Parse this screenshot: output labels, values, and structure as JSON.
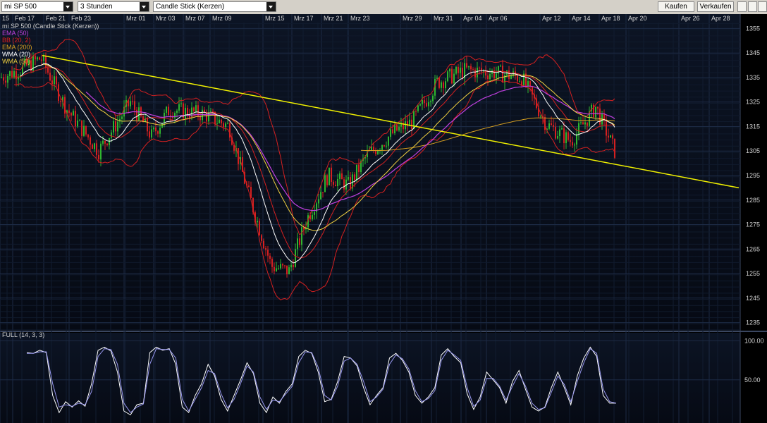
{
  "toolbar": {
    "instrument": "mi SP 500",
    "interval": "3 Stunden",
    "chart_type": "Candle Stick (Kerzen)",
    "buy_label": "Kaufen",
    "sell_label": "Verkaufen"
  },
  "chart_data": [
    {
      "type": "candlestick",
      "title": "mi SP 500 (Candle Stick (Kerzen))",
      "indicators": [
        {
          "name": "EMA (50)",
          "color": "#c040e0"
        },
        {
          "name": "BB (20, 2)",
          "color": "#e02020"
        },
        {
          "name": "EMA (200)",
          "color": "#d8a020"
        },
        {
          "name": "WMA (20)",
          "color": "#ffffff"
        },
        {
          "name": "WMA (50)",
          "color": "#f0d040"
        }
      ],
      "date_labels": [
        "15",
        "Feb 17",
        "Feb 21",
        "Feb 23",
        "Mrz 01",
        "Mrz 03",
        "Mrz 07",
        "Mrz 09",
        "Mrz 15",
        "Mrz 17",
        "Mrz 21",
        "Mrz 23",
        "Mrz 29",
        "Mrz 31",
        "Apr 04",
        "Apr 06",
        "Apr 12",
        "Apr 14",
        "Apr 18",
        "Apr 20",
        "Apr 26",
        "Apr 28"
      ],
      "y_ticks": [
        "1355",
        "1345",
        "1335",
        "1325",
        "1315",
        "1305",
        "1295",
        "1285",
        "1275",
        "1265",
        "1255",
        "1245",
        "1235"
      ],
      "ylim": [
        1232,
        1358
      ],
      "close_path": [
        {
          "x": 0,
          "y": 1335
        },
        {
          "x": 28,
          "y": 1338
        },
        {
          "x": 58,
          "y": 1343
        },
        {
          "x": 95,
          "y": 1322
        },
        {
          "x": 140,
          "y": 1305
        },
        {
          "x": 185,
          "y": 1325
        },
        {
          "x": 215,
          "y": 1311
        },
        {
          "x": 240,
          "y": 1322
        },
        {
          "x": 290,
          "y": 1320
        },
        {
          "x": 325,
          "y": 1315
        },
        {
          "x": 350,
          "y": 1290
        },
        {
          "x": 385,
          "y": 1258
        },
        {
          "x": 410,
          "y": 1256
        },
        {
          "x": 435,
          "y": 1277
        },
        {
          "x": 465,
          "y": 1295
        },
        {
          "x": 495,
          "y": 1291
        },
        {
          "x": 520,
          "y": 1303
        },
        {
          "x": 560,
          "y": 1313
        },
        {
          "x": 585,
          "y": 1317
        },
        {
          "x": 620,
          "y": 1333
        },
        {
          "x": 660,
          "y": 1338
        },
        {
          "x": 700,
          "y": 1337
        },
        {
          "x": 740,
          "y": 1335
        },
        {
          "x": 775,
          "y": 1316
        },
        {
          "x": 810,
          "y": 1309
        },
        {
          "x": 845,
          "y": 1323
        },
        {
          "x": 875,
          "y": 1303
        }
      ],
      "trendline": {
        "start": {
          "x": 60,
          "y": 1344
        },
        "end": {
          "x": 1048,
          "y": 1290
        },
        "color": "#f0f000"
      }
    },
    {
      "type": "line",
      "title": "FULL (14, 3, 3)",
      "y_ticks": [
        "100.00",
        "50.00"
      ],
      "ylim": [
        0,
        105
      ],
      "series": [
        {
          "color": "#ffffff",
          "values": [
            85,
            84,
            88,
            85,
            30,
            8,
            22,
            15,
            23,
            16,
            45,
            88,
            92,
            87,
            60,
            10,
            5,
            18,
            20,
            85,
            92,
            88,
            90,
            70,
            15,
            8,
            30,
            45,
            70,
            55,
            25,
            10,
            30,
            50,
            72,
            58,
            20,
            8,
            28,
            20,
            35,
            45,
            80,
            88,
            84,
            60,
            22,
            25,
            48,
            80,
            78,
            68,
            40,
            18,
            30,
            40,
            78,
            84,
            75,
            60,
            30,
            20,
            28,
            40,
            82,
            90,
            80,
            72,
            32,
            12,
            28,
            60,
            50,
            40,
            20,
            48,
            62,
            38,
            15,
            10,
            15,
            40,
            60,
            40,
            18,
            55,
            78,
            92,
            80,
            30,
            20,
            20
          ]
        },
        {
          "color": "#9898f0",
          "values": [
            84,
            84,
            86,
            86,
            45,
            15,
            18,
            16,
            20,
            18,
            35,
            80,
            90,
            89,
            70,
            20,
            8,
            15,
            19,
            70,
            90,
            89,
            89,
            78,
            25,
            10,
            25,
            40,
            62,
            58,
            32,
            14,
            25,
            45,
            68,
            60,
            28,
            12,
            24,
            22,
            32,
            42,
            72,
            86,
            85,
            66,
            30,
            24,
            42,
            74,
            78,
            70,
            48,
            22,
            28,
            38,
            70,
            82,
            77,
            64,
            36,
            22,
            26,
            36,
            75,
            88,
            82,
            75,
            40,
            16,
            24,
            52,
            52,
            42,
            24,
            42,
            58,
            42,
            20,
            12,
            14,
            34,
            55,
            44,
            22,
            48,
            72,
            90,
            84,
            38,
            22,
            20
          ]
        }
      ]
    }
  ]
}
